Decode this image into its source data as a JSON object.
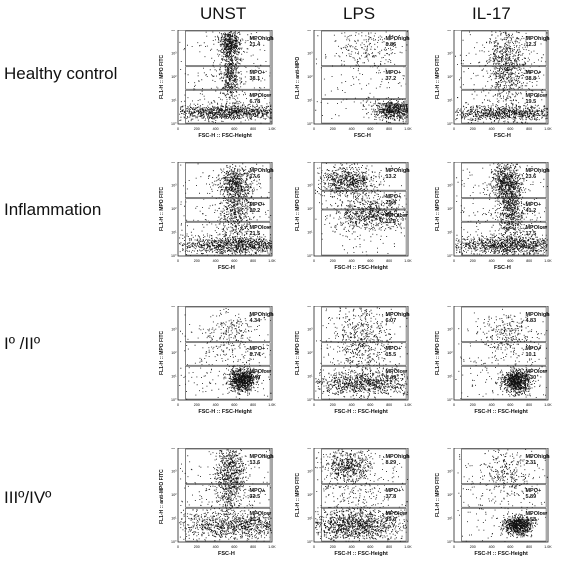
{
  "columns": [
    "UNST",
    "LPS",
    "IL-17"
  ],
  "rows": [
    "Healthy control",
    "Inflammation",
    "Iº /IIº",
    "IIIº/IVº"
  ],
  "chart_data": {
    "type": "scatter",
    "xlim": [
      0,
      1000
    ],
    "ylim_log": [
      0,
      4
    ],
    "x_ticks": [
      "0",
      "200",
      "400",
      "600",
      "800",
      "1.0K"
    ],
    "y_ticks": [
      "10⁰",
      "10¹",
      "10²",
      "10³",
      "10⁴"
    ],
    "panels": [
      {
        "row": 0,
        "col": 0,
        "xlabel": "FSC-H :: FSC-Height",
        "ylabel": "FL1-H :: MPO FITC",
        "gates": [
          {
            "name": "MPOhigh",
            "value": "21.4"
          },
          {
            "name": "MPO+",
            "value": "38.1"
          },
          {
            "name": "MPOlow",
            "value": "6.78"
          }
        ]
      },
      {
        "row": 0,
        "col": 1,
        "xlabel": "FSC-H",
        "ylabel": "FL1-H :: anti-MPO",
        "gates": [
          {
            "name": "MPOhigh",
            "value": "8.86"
          },
          {
            "name": "MPO+",
            "value": "37.2"
          },
          {
            "name": "MPOlow",
            "value": "28.4"
          }
        ]
      },
      {
        "row": 0,
        "col": 2,
        "xlabel": "FSC-H",
        "ylabel": "FL1-H :: MPO FITC",
        "gates": [
          {
            "name": "MPOhigh",
            "value": "12.3"
          },
          {
            "name": "MPO+",
            "value": "38.8"
          },
          {
            "name": "MPOlow",
            "value": "19.5"
          }
        ]
      },
      {
        "row": 1,
        "col": 0,
        "xlabel": "FSC-H",
        "ylabel": "FL1-H :: MPO FITC",
        "gates": [
          {
            "name": "MPOhigh",
            "value": "17.6"
          },
          {
            "name": "MPO+",
            "value": "30.2"
          },
          {
            "name": "MPOlow",
            "value": "21.5"
          }
        ]
      },
      {
        "row": 1,
        "col": 1,
        "xlabel": "FSC-H :: FSC-Height",
        "ylabel": "FL1-H :: MPO FITC",
        "gates": [
          {
            "name": "MPOhigh",
            "value": "13.2"
          },
          {
            "name": "MPO+",
            "value": "25.4"
          },
          {
            "name": "MPOlow",
            "value": "11.5"
          }
        ]
      },
      {
        "row": 1,
        "col": 2,
        "xlabel": "FSC-H",
        "ylabel": "FL1-H :: MPO FITC",
        "gates": [
          {
            "name": "MPOhigh",
            "value": "23.6"
          },
          {
            "name": "MPO+",
            "value": "41.2"
          },
          {
            "name": "MPOlow",
            "value": "17.5"
          }
        ]
      },
      {
        "row": 2,
        "col": 0,
        "xlabel": "FSC-H :: FSC-Height",
        "ylabel": "FL1-H :: MPO FITC",
        "gates": [
          {
            "name": "MPOhigh",
            "value": "4.34"
          },
          {
            "name": "MPO+",
            "value": "8.74"
          },
          {
            "name": "MPOlow",
            "value": "4.49"
          }
        ]
      },
      {
        "row": 2,
        "col": 1,
        "xlabel": "FSC-H :: FSC-Height",
        "ylabel": "FL1-H :: MPO FITC",
        "gates": [
          {
            "name": "MPOhigh",
            "value": "6.07"
          },
          {
            "name": "MPO+",
            "value": "15.5"
          },
          {
            "name": "MPOlow",
            "value": "8.49"
          }
        ]
      },
      {
        "row": 2,
        "col": 2,
        "xlabel": "FSC-H :: FSC-Height",
        "ylabel": "FL1-H :: MPO FITC",
        "gates": [
          {
            "name": "MPOhigh",
            "value": "4.83"
          },
          {
            "name": "MPO+",
            "value": "10.1"
          },
          {
            "name": "MPOlow",
            "value": "5.30"
          }
        ]
      },
      {
        "row": 3,
        "col": 0,
        "xlabel": "FSC-H",
        "ylabel": "FL1-H :: anti-MPO FITC",
        "gates": [
          {
            "name": "MPOhigh",
            "value": "13.6"
          },
          {
            "name": "MPO+",
            "value": "33.5"
          },
          {
            "name": "MPOlow",
            "value": "20.4"
          }
        ]
      },
      {
        "row": 3,
        "col": 1,
        "xlabel": "FSC-H :: FSC-Height",
        "ylabel": "FL1-H :: MPO FITC",
        "gates": [
          {
            "name": "MPOhigh",
            "value": "8.29"
          },
          {
            "name": "MPO+",
            "value": "37.8"
          },
          {
            "name": "MPOlow",
            "value": "29.6"
          }
        ]
      },
      {
        "row": 3,
        "col": 2,
        "xlabel": "FSC-H :: FSC-Height",
        "ylabel": "FL1-H :: MPO FITC",
        "gates": [
          {
            "name": "MPOhigh",
            "value": "2.31"
          },
          {
            "name": "MPO+",
            "value": "5.89"
          },
          {
            "name": "MPOlow",
            "value": "3.58"
          }
        ]
      }
    ]
  }
}
